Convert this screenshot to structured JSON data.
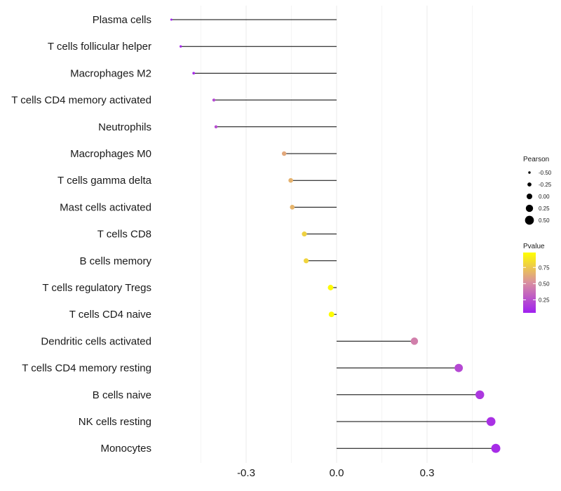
{
  "chart_data": {
    "type": "lollipop",
    "title": "",
    "xlabel": "",
    "ylabel": "",
    "xlim": [
      -0.58,
      0.56
    ],
    "x_ticks": [
      -0.3,
      0.0,
      0.3
    ],
    "x_tick_labels": [
      "-0.3",
      "0.0",
      "0.3"
    ],
    "categories": [
      "Plasma cells",
      "T cells follicular helper",
      "Macrophages M2",
      "T cells CD4 memory activated",
      "Neutrophils",
      "Macrophages M0",
      "T cells gamma delta",
      "Mast cells activated",
      "T cells CD8",
      "B cells memory",
      "T cells regulatory  Tregs ",
      "T cells CD4 naive",
      "Dendritic cells activated",
      "T cells CD4 memory resting",
      "B cells naive",
      "NK cells resting",
      "Monocytes"
    ],
    "pearson": [
      -0.548,
      -0.517,
      -0.474,
      -0.407,
      -0.4,
      -0.174,
      -0.152,
      -0.147,
      -0.107,
      -0.101,
      -0.02,
      -0.017,
      0.258,
      0.405,
      0.475,
      0.512,
      0.528
    ],
    "pvalue": [
      0.06,
      0.08,
      0.1,
      0.22,
      0.23,
      0.62,
      0.66,
      0.67,
      0.79,
      0.8,
      0.96,
      0.97,
      0.45,
      0.22,
      0.15,
      0.12,
      0.1
    ],
    "legend_pearson": {
      "title": "Pearson",
      "labels": [
        "-0.50",
        "-0.25",
        "0.00",
        "0.25",
        "0.50"
      ],
      "values": [
        -0.5,
        -0.25,
        0.0,
        0.25,
        0.5
      ]
    },
    "legend_pvalue": {
      "title": "Pvalue",
      "labels": [
        "0.75",
        "0.50",
        "0.25"
      ],
      "values": [
        0.75,
        0.5,
        0.25
      ],
      "range": [
        0.05,
        0.98
      ]
    },
    "color_low": "#a020f0",
    "color_high": "#ffff00",
    "grid": true,
    "legend_position": "right"
  }
}
